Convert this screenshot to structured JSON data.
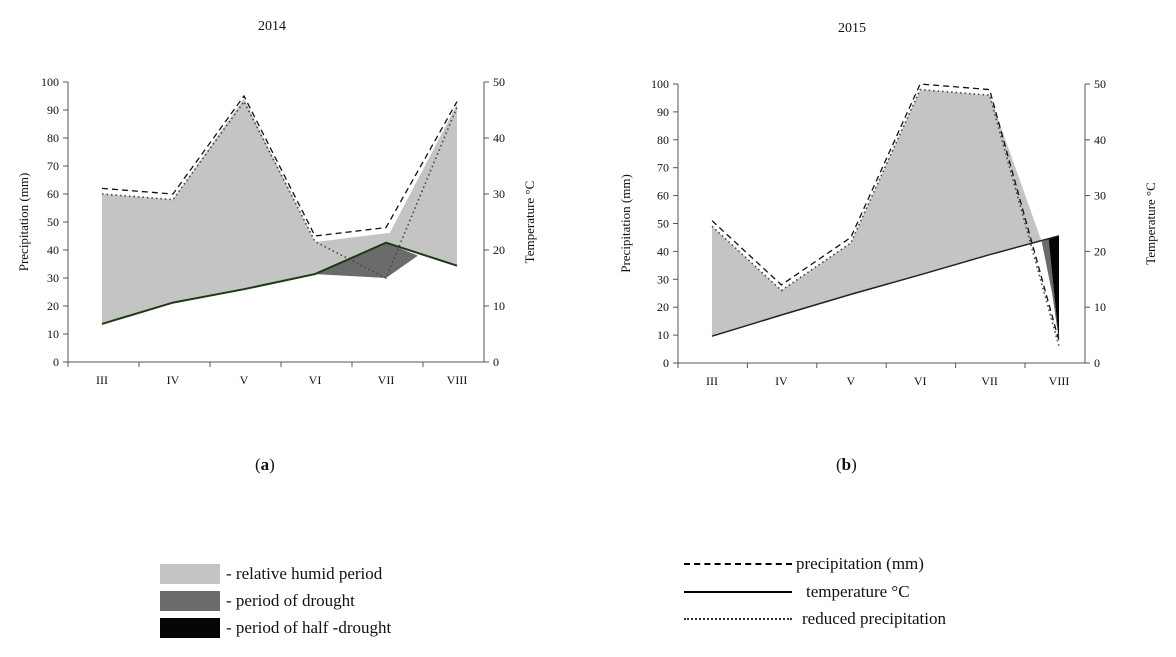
{
  "chart_data": [
    {
      "type": "area",
      "label": "(a)",
      "title": "2014",
      "categories": [
        "III",
        "IV",
        "V",
        "VI",
        "VII",
        "VIII"
      ],
      "ylabel": "Precipitation (mm)",
      "y2label": "Temperature °C",
      "ylim": [
        0,
        100
      ],
      "y2lim": [
        0,
        50
      ],
      "yticks": [
        0,
        10,
        20,
        30,
        40,
        50,
        60,
        70,
        80,
        90,
        100
      ],
      "y2ticks": [
        0,
        10,
        20,
        30,
        40,
        50
      ],
      "series": [
        {
          "name": "precipitation (mm)",
          "axis": "left",
          "values": [
            62,
            60,
            95,
            45,
            48,
            93
          ]
        },
        {
          "name": "temperature °C",
          "axis": "right",
          "values": [
            6.8,
            10.6,
            13,
            15.7,
            21.3,
            17.2
          ]
        },
        {
          "name": "reduced precipitation",
          "axis": "left",
          "values": [
            60,
            58,
            93,
            43,
            30,
            91
          ]
        }
      ],
      "regions": {
        "humid": {
          "x": [
            0,
            1,
            2,
            3,
            3.05,
            4,
            4.05,
            5,
            5,
            4,
            3,
            2,
            1,
            0
          ],
          "y": [
            60,
            58,
            94,
            43,
            43,
            46,
            46,
            92,
            34.4,
            42.6,
            31.4,
            26,
            21.2,
            13.6
          ]
        },
        "drought": {
          "x": [
            3,
            4,
            4.45,
            4,
            3
          ],
          "y": [
            31.4,
            42.6,
            38,
            30,
            31.4
          ]
        }
      }
    },
    {
      "type": "area",
      "label": "(b)",
      "title": "2015",
      "categories": [
        "III",
        "IV",
        "V",
        "VI",
        "VII",
        "VIII"
      ],
      "ylabel": "Precipitation (mm)",
      "y2label": "Temperature °C",
      "ylim": [
        0,
        100
      ],
      "y2lim": [
        0,
        50
      ],
      "yticks": [
        0,
        10,
        20,
        30,
        40,
        50,
        60,
        70,
        80,
        90,
        100
      ],
      "y2ticks": [
        0,
        10,
        20,
        30,
        40,
        50
      ],
      "series": [
        {
          "name": "precipitation (mm)",
          "axis": "left",
          "values": [
            51,
            28,
            45,
            100,
            98,
            8
          ]
        },
        {
          "name": "temperature °C",
          "axis": "right",
          "values": [
            4.8,
            8.6,
            12.3,
            15.8,
            19.4,
            22.8
          ]
        },
        {
          "name": "reduced precipitation",
          "axis": "left",
          "values": [
            49,
            26,
            43,
            98,
            96,
            6
          ]
        }
      ],
      "regions": {
        "humid": {
          "x": [
            0,
            1,
            2,
            3,
            4,
            4.75,
            4,
            3,
            2,
            1,
            0
          ],
          "y": [
            49,
            26,
            43,
            98,
            96,
            43.5,
            38.8,
            31.6,
            24.6,
            17.2,
            9.6
          ]
        },
        "drought": {
          "x": [
            4.75,
            4.85,
            5,
            4.9
          ],
          "y": [
            43.5,
            44.5,
            8,
            25
          ]
        },
        "half_drought": {
          "x": [
            4.85,
            5,
            5
          ],
          "y": [
            44.5,
            45.6,
            8
          ]
        }
      }
    }
  ],
  "panels": {
    "a": {
      "label_open": "(",
      "label_letter": "a",
      "label_close": ")"
    },
    "b": {
      "label_open": "(",
      "label_letter": "b",
      "label_close": ")"
    }
  },
  "legend": {
    "humid": "- relative humid period",
    "drought": "- period of drought",
    "half_drought": "- period of half -drought",
    "precip": "precipitation (mm)",
    "temp": "temperature °C",
    "reduced": "reduced precipitation"
  },
  "colors": {
    "humid": "#c4c4c4",
    "drought": "#6b6b6b",
    "half_drought": "#050505",
    "temp_a": "#1c3a14",
    "temp_b": "#222222"
  }
}
